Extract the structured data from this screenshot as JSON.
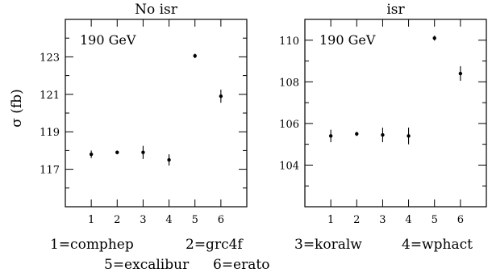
{
  "chart_data": [
    {
      "type": "scatter",
      "title": "No isr",
      "annotation": "190 GeV",
      "ylabel": "σ (fb)",
      "xlabel": "",
      "x": [
        1,
        2,
        3,
        4,
        5,
        6
      ],
      "xticks": [
        "1",
        "2",
        "3",
        "4",
        "5",
        "6"
      ],
      "xlim": [
        0,
        7
      ],
      "ylim": [
        115,
        125
      ],
      "yticks": [
        117,
        119,
        121,
        123
      ],
      "series": [
        {
          "values": [
            117.8,
            117.9,
            117.9,
            117.5,
            123.05,
            120.9
          ],
          "errors": [
            0.2,
            0.1,
            0.35,
            0.3,
            0.12,
            0.35
          ]
        }
      ],
      "grid": false
    },
    {
      "type": "scatter",
      "title": "isr",
      "annotation": "190 GeV",
      "ylabel": "",
      "xlabel": "",
      "x": [
        1,
        2,
        3,
        4,
        5,
        6
      ],
      "xticks": [
        "1",
        "2",
        "3",
        "4",
        "5",
        "6"
      ],
      "xlim": [
        0,
        7
      ],
      "ylim": [
        102,
        111
      ],
      "yticks": [
        104,
        106,
        108,
        110
      ],
      "series": [
        {
          "values": [
            105.4,
            105.5,
            105.45,
            105.4,
            110.1,
            108.4
          ],
          "errors": [
            0.3,
            0.1,
            0.35,
            0.4,
            0.12,
            0.35
          ]
        }
      ],
      "grid": false
    }
  ],
  "legend": [
    {
      "label": "1=comphep"
    },
    {
      "label": "2=grc4f"
    },
    {
      "label": "3=koralw"
    },
    {
      "label": "4=wphact"
    },
    {
      "label": "5=excalibur"
    },
    {
      "label": "6=erato"
    }
  ]
}
